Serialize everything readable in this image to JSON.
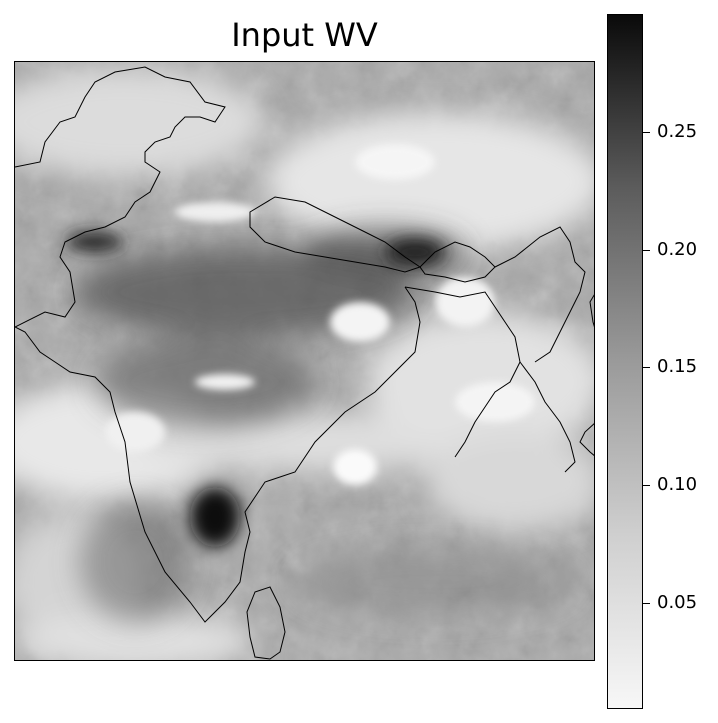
{
  "title": "Input WV",
  "colormap": {
    "name": "Greys",
    "low_color": "#f7f7f7",
    "high_color": "#0a0a0a",
    "range": [
      0.005,
      0.3
    ]
  },
  "colorbar": {
    "ticks": [
      {
        "value": 0.05,
        "label": "0.05"
      },
      {
        "value": 0.1,
        "label": "0.10"
      },
      {
        "value": 0.15,
        "label": "0.15"
      },
      {
        "value": 0.2,
        "label": "0.20"
      },
      {
        "value": 0.25,
        "label": "0.25"
      }
    ]
  },
  "layers": {
    "boundaries": "country-borders-icon",
    "imagery": "water-vapour-field"
  }
}
